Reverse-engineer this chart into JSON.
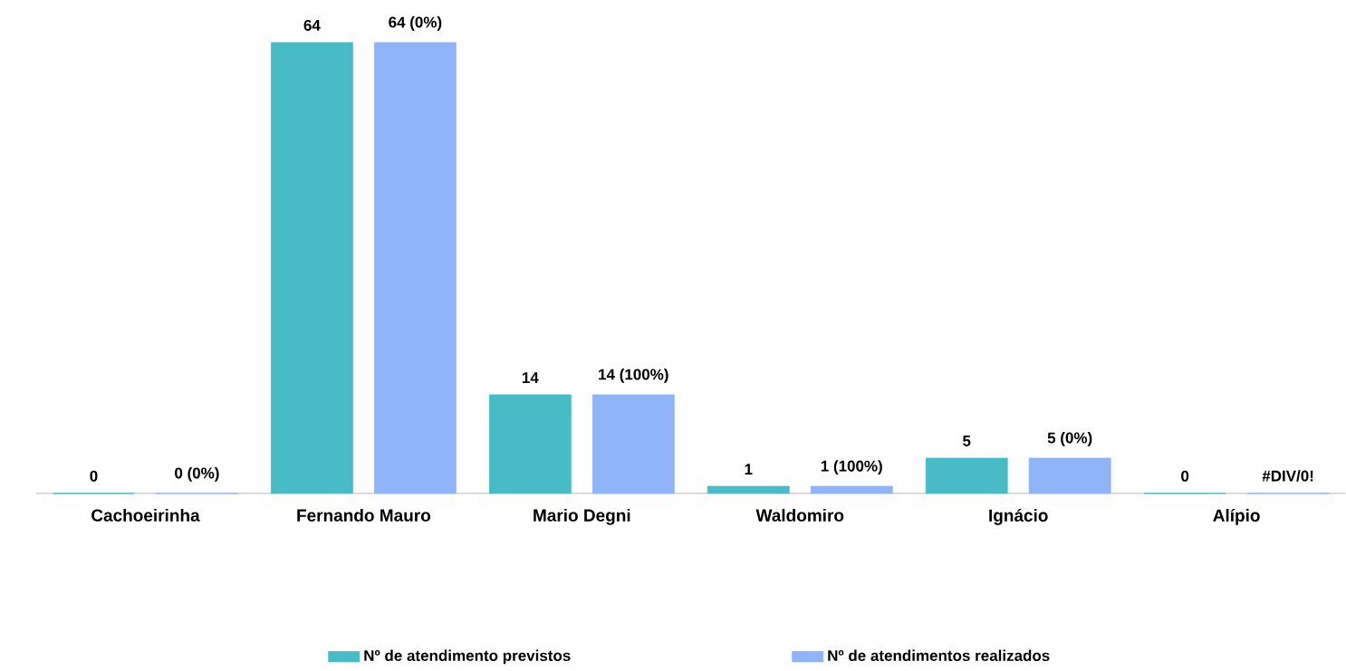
{
  "chart_data": {
    "type": "bar",
    "categories": [
      "Cachoeirinha",
      "Fernando Mauro",
      "Mario Degni",
      "Waldomiro",
      "Ignácio",
      "Alípio"
    ],
    "series": [
      {
        "name": "Nº de atendimento previstos",
        "color": "#47bcc6",
        "values": [
          0,
          64,
          14,
          1,
          5,
          0
        ],
        "value_labels": [
          "0",
          "64",
          "14",
          "1",
          "5",
          "0"
        ]
      },
      {
        "name": "Nº de atendimentos realizados",
        "color": "#8fb4f8",
        "values": [
          0,
          64,
          14,
          1,
          5,
          0
        ],
        "value_labels": [
          "0 (0%)",
          "64 (0%)",
          "14 (100%)",
          "1 (100%)",
          "5 (0%)",
          "#DIV/0!"
        ]
      }
    ],
    "legend": "bottom"
  }
}
